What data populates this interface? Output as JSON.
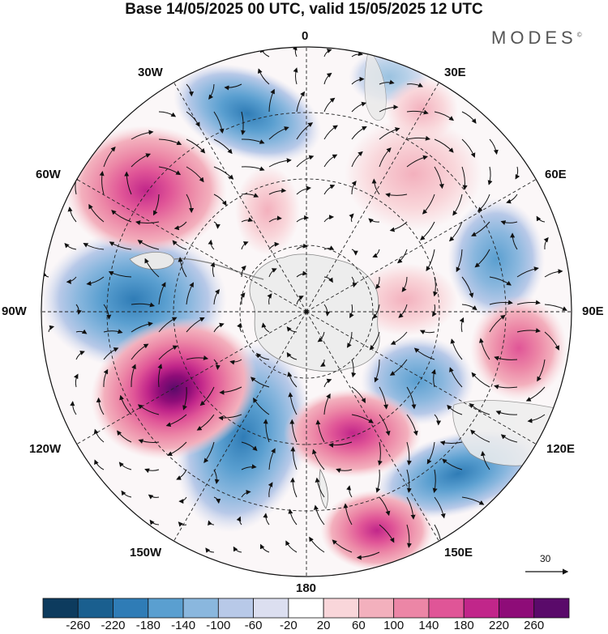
{
  "title": "Base 14/05/2025 00 UTC, valid 15/05/2025 12 UTC",
  "brand": "MODES",
  "brand_mark": "©",
  "longitude_labels": {
    "deg0": "0",
    "w30": "30W",
    "e30": "30E",
    "w60": "60W",
    "e60": "60E",
    "w90": "90W",
    "e90": "90E",
    "w120": "120W",
    "e120": "120E",
    "w150": "150W",
    "e150": "150E",
    "deg180": "180"
  },
  "vector_reference": {
    "value": "30"
  },
  "colorbar": {
    "ticks": [
      "-260",
      "-220",
      "-180",
      "-140",
      "-100",
      "-60",
      "-20",
      "20",
      "60",
      "100",
      "140",
      "180",
      "220",
      "260"
    ],
    "colors": [
      "#0d3b5e",
      "#1a5f8f",
      "#2f7cb6",
      "#5a9fd0",
      "#8ab7de",
      "#b8c9e8",
      "#dcdff0",
      "#ffffff",
      "#f9d6da",
      "#f3b0bd",
      "#ec86a6",
      "#e05597",
      "#c1268a",
      "#8e0c78",
      "#5a0a6a"
    ]
  },
  "map": {
    "projection": "south-polar-stereographic",
    "field": "anomaly",
    "anomalies": [
      {
        "name": "low-30w",
        "lon": -28,
        "lat": -42,
        "value": -170
      },
      {
        "name": "high-55w",
        "lon": -58,
        "lat": -42,
        "value": 210
      },
      {
        "name": "low-85w",
        "lon": -88,
        "lat": -45,
        "value": -180
      },
      {
        "name": "high-115w",
        "lon": -115,
        "lat": -45,
        "value": 260
      },
      {
        "name": "low-150w",
        "lon": -150,
        "lat": -52,
        "value": -200
      },
      {
        "name": "high-160e",
        "lon": 163,
        "lat": -50,
        "value": 150
      },
      {
        "name": "high-170e-far",
        "lon": 160,
        "lat": -30,
        "value": 140
      },
      {
        "name": "low-125e",
        "lon": 128,
        "lat": -32,
        "value": -190
      },
      {
        "name": "low-135e",
        "lon": 128,
        "lat": -55,
        "value": -150
      },
      {
        "name": "high-100e",
        "lon": 102,
        "lat": -40,
        "value": 140
      },
      {
        "name": "low-60e",
        "lon": 62,
        "lat": -40,
        "value": -140
      },
      {
        "name": "high-40e",
        "lon": 35,
        "lat": -48,
        "value": 80
      },
      {
        "name": "high-15e",
        "lon": 8,
        "lat": -30,
        "value": 60
      },
      {
        "name": "high-60w-inner",
        "lon": -45,
        "lat": -65,
        "value": 60
      },
      {
        "name": "high-100e-inner",
        "lon": 95,
        "lat": -65,
        "value": 60
      }
    ]
  }
}
